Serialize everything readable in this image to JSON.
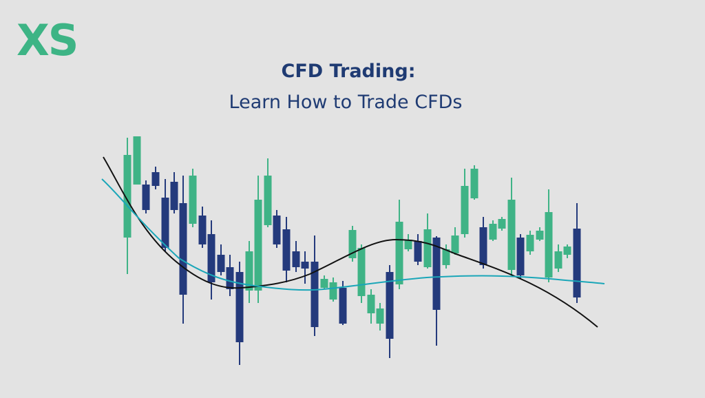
{
  "logo": "XS",
  "header": {
    "title": "CFD Trading:",
    "subtitle": "Learn How to Trade CFDs"
  }
}
